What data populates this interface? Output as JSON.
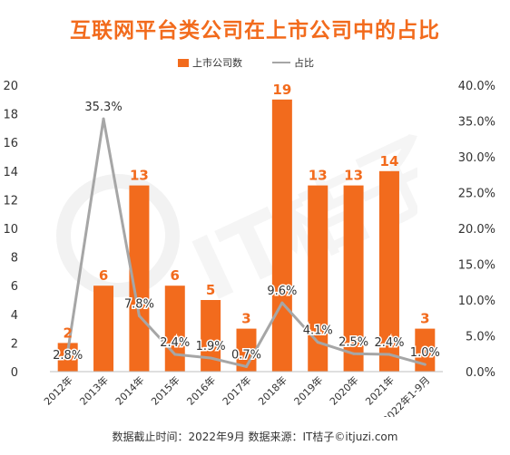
{
  "title": "互联网平台类公司在上市公司中的占比",
  "footer": "数据截止时间：2022年9月 数据来源：IT桔子©itjuzi.com",
  "colors": {
    "title": "#f26b1d",
    "bar": "#f26b1d",
    "line": "#a6a6a6",
    "bar_label": "#f26b1d",
    "grid": "#e0e0e0"
  },
  "chart_data": {
    "type": "bar",
    "categories": [
      "2012年",
      "2013年",
      "2014年",
      "2015年",
      "2016年",
      "2017年",
      "2018年",
      "2019年",
      "2020年",
      "2021年",
      "2022年1-9月"
    ],
    "series": [
      {
        "name": "上市公司数",
        "type": "bar",
        "axis": "left",
        "values": [
          2,
          6,
          13,
          6,
          5,
          3,
          19,
          13,
          13,
          14,
          3
        ],
        "labels": [
          "2",
          "6",
          "13",
          "6",
          "5",
          "3",
          "19",
          "13",
          "13",
          "14",
          "3"
        ]
      },
      {
        "name": "占比",
        "type": "line",
        "axis": "right",
        "values": [
          2.8,
          35.3,
          7.8,
          2.4,
          1.9,
          0.7,
          9.6,
          4.1,
          2.5,
          2.4,
          1.0
        ],
        "labels": [
          "2.8%",
          "35.3%",
          "7.8%",
          "2.4%",
          "1.9%",
          "0.7%",
          "9.6%",
          "4.1%",
          "2.5%",
          "2.4%",
          "1.0%"
        ]
      }
    ],
    "y_left": {
      "range": [
        0,
        20
      ],
      "ticks": [
        "0",
        "2",
        "4",
        "6",
        "8",
        "10",
        "12",
        "14",
        "16",
        "18",
        "20"
      ]
    },
    "y_right": {
      "range": [
        0,
        40
      ],
      "ticks": [
        "0.0%",
        "5.0%",
        "10.0%",
        "15.0%",
        "20.0%",
        "25.0%",
        "30.0%",
        "35.0%",
        "40.0%"
      ]
    },
    "legend": {
      "position": "top-right"
    },
    "grid": false,
    "watermark": "IT桔子"
  }
}
